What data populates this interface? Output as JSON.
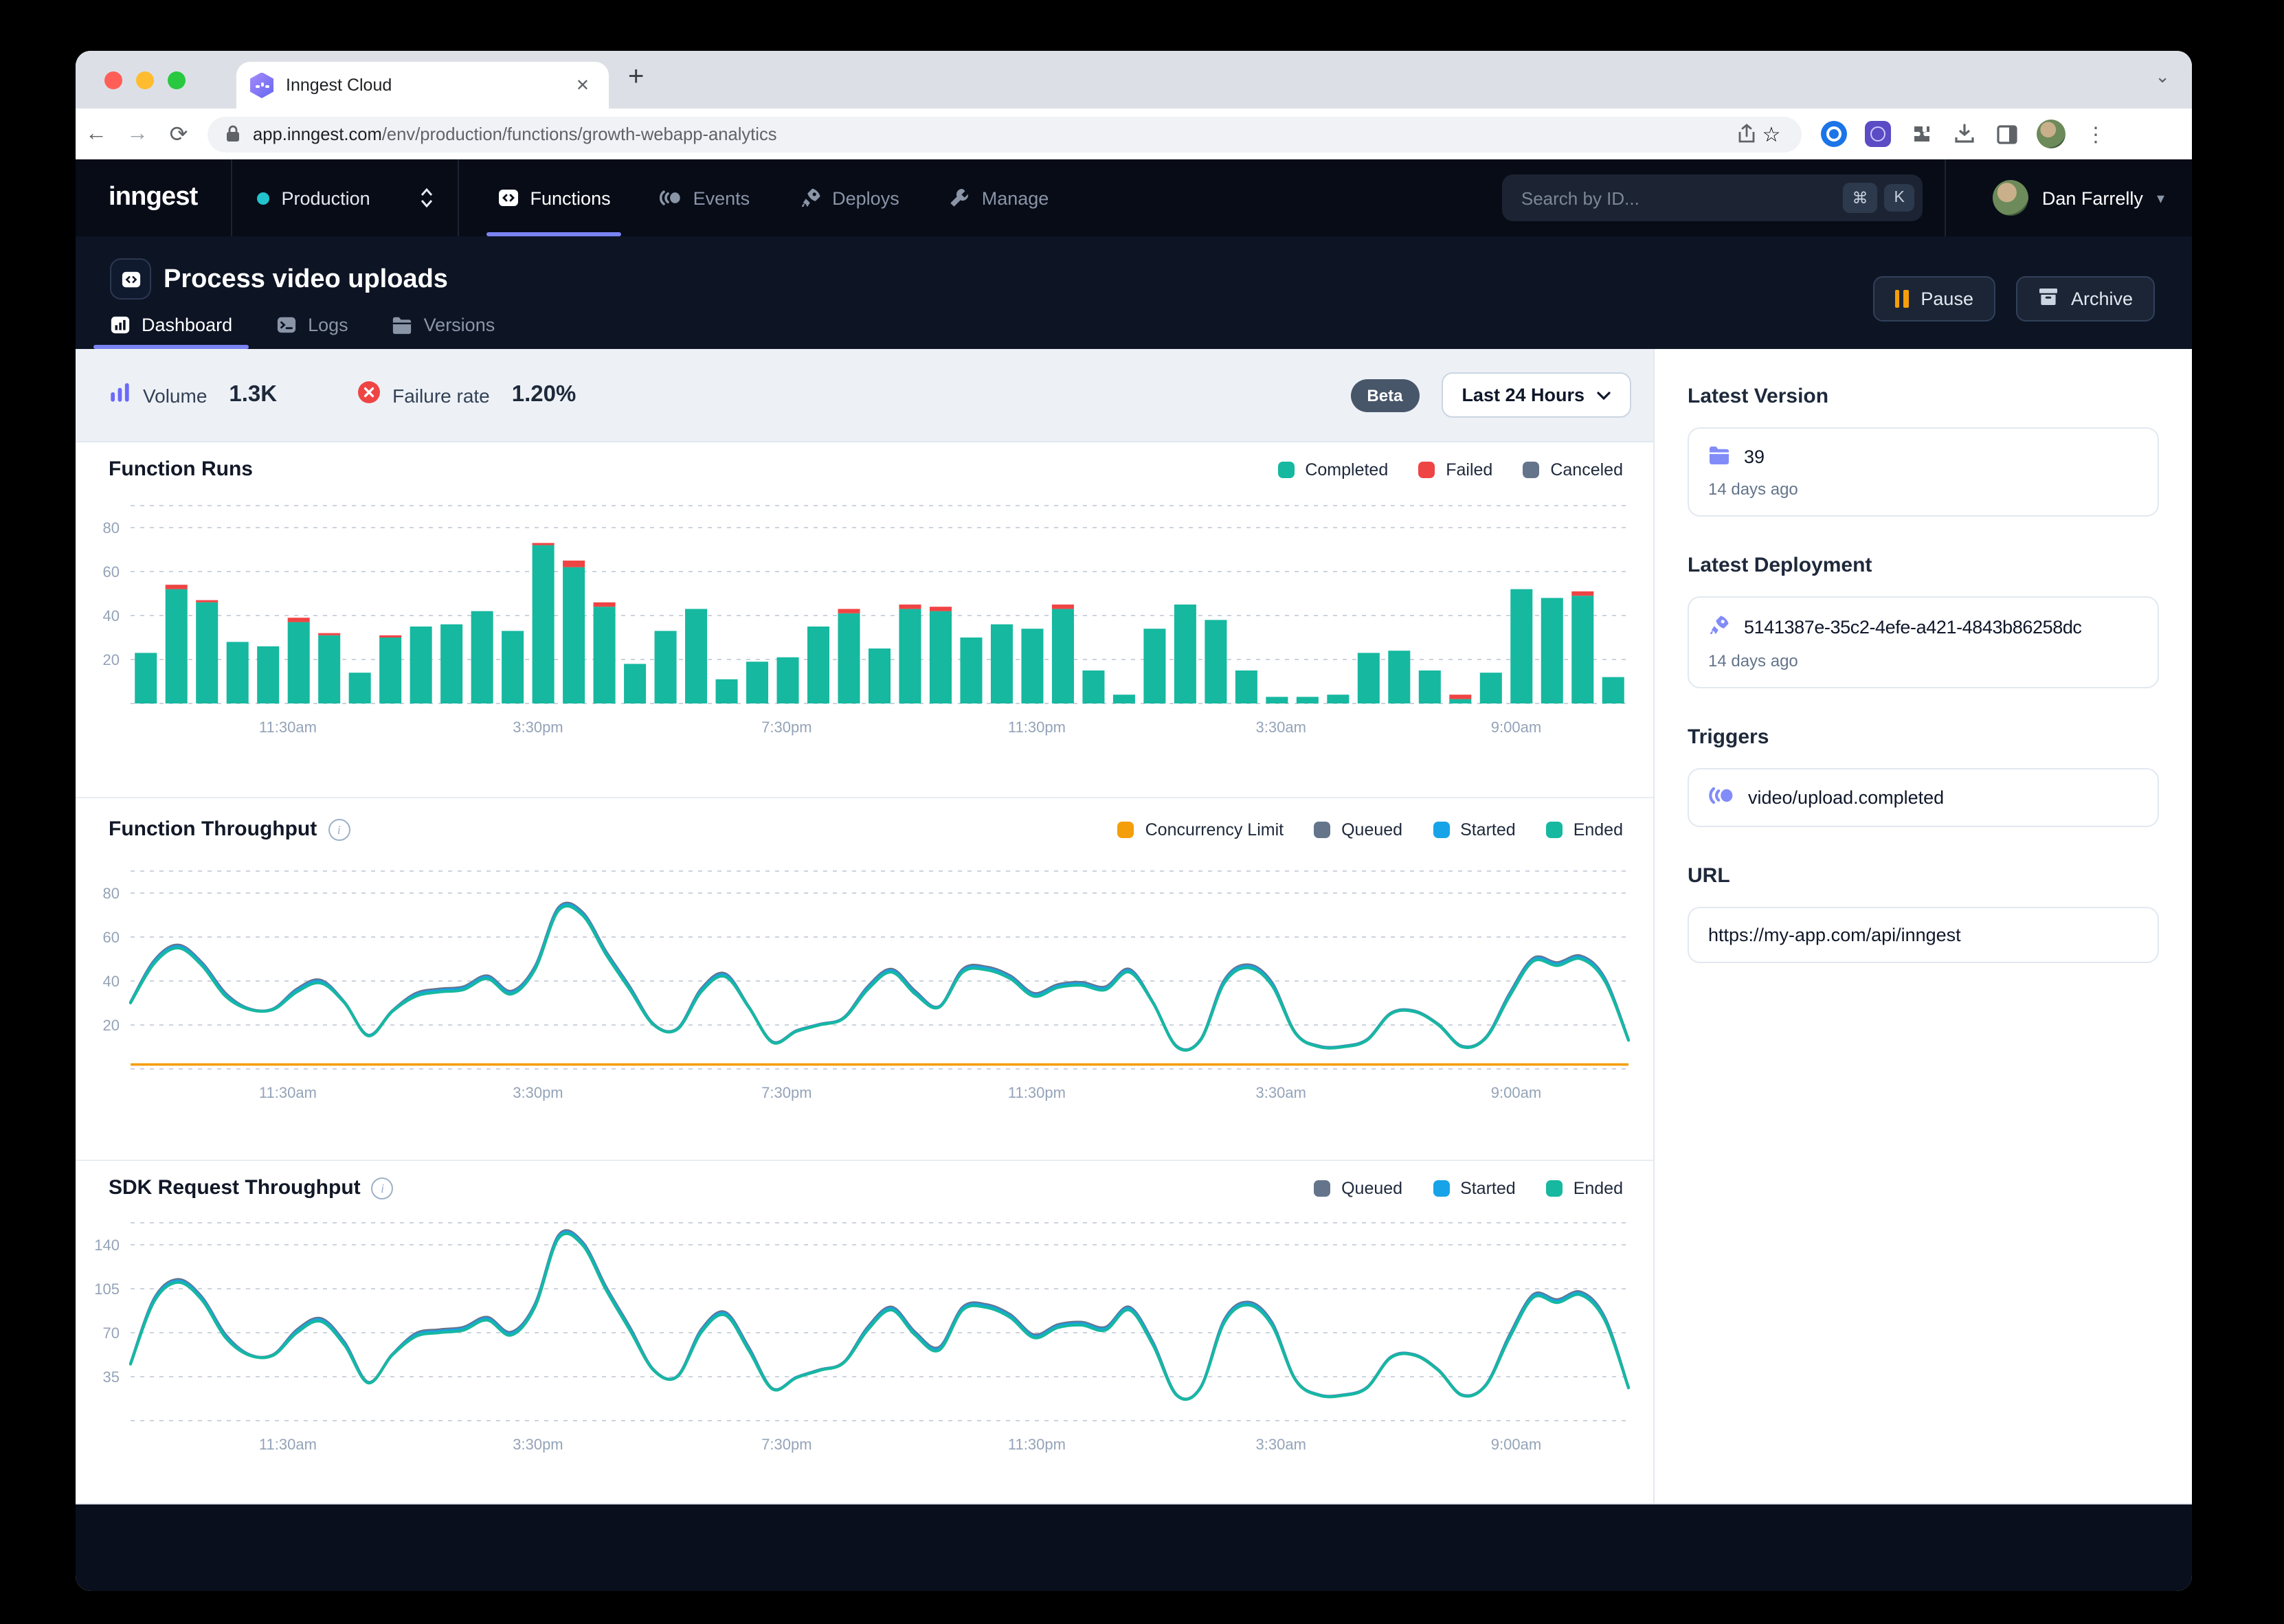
{
  "browser": {
    "tab_title": "Inngest Cloud",
    "url_host": "app.inngest.com",
    "url_path": "/env/production/functions/growth-webapp-analytics"
  },
  "nav": {
    "logo": "inngest",
    "env_label": "Production",
    "items": [
      {
        "label": "Functions",
        "icon": "code-icon",
        "active": true
      },
      {
        "label": "Events",
        "icon": "event-icon",
        "active": false
      },
      {
        "label": "Deploys",
        "icon": "rocket-icon",
        "active": false
      },
      {
        "label": "Manage",
        "icon": "wrench-icon",
        "active": false
      }
    ],
    "search_placeholder": "Search by ID...",
    "search_keys": [
      "⌘",
      "K"
    ],
    "user_name": "Dan Farrelly"
  },
  "header": {
    "title": "Process video uploads",
    "tabs": [
      {
        "label": "Dashboard",
        "icon": "bar-chart-icon",
        "active": true
      },
      {
        "label": "Logs",
        "icon": "terminal-icon",
        "active": false
      },
      {
        "label": "Versions",
        "icon": "folder-icon",
        "active": false
      }
    ],
    "pause_label": "Pause",
    "archive_label": "Archive"
  },
  "stats": {
    "volume_label": "Volume",
    "volume_value": "1.3K",
    "failure_label": "Failure rate",
    "failure_value": "1.20%",
    "beta_label": "Beta",
    "range_label": "Last 24 Hours"
  },
  "sidebar": {
    "latest_version": {
      "heading": "Latest Version",
      "value": "39",
      "time": "14 days ago"
    },
    "latest_deployment": {
      "heading": "Latest Deployment",
      "value": "5141387e-35c2-4efe-a421-4843b86258dc",
      "time": "14 days ago"
    },
    "triggers": {
      "heading": "Triggers",
      "value": "video/upload.completed"
    },
    "url": {
      "heading": "URL",
      "value": "https://my-app.com/api/inngest"
    }
  },
  "colors": {
    "accent_purple": "#7a83f2",
    "teal": "#16b8a0",
    "red": "#ef4444",
    "slate": "#64748b",
    "blue": "#17a3e8",
    "amber": "#f59e0b",
    "nav_bg": "#070c17",
    "header_bg": "#0d1424"
  },
  "chart_data": [
    {
      "type": "bar",
      "title": "Function Runs",
      "legend": [
        {
          "label": "Completed",
          "color": "#16b8a0"
        },
        {
          "label": "Failed",
          "color": "#ef4444"
        },
        {
          "label": "Canceled",
          "color": "#64748b"
        }
      ],
      "x_ticks": [
        "11:30am",
        "3:30pm",
        "7:30pm",
        "11:30pm",
        "3:30am",
        "9:00am"
      ],
      "y_ticks": [
        20,
        40,
        60,
        80
      ],
      "ylim": [
        0,
        90
      ],
      "series": [
        {
          "name": "Completed",
          "color": "#16b8a0",
          "values": [
            23,
            52,
            46,
            28,
            26,
            37,
            31,
            14,
            30,
            35,
            36,
            42,
            33,
            72,
            62,
            44,
            18,
            33,
            43,
            11,
            19,
            21,
            35,
            41,
            25,
            43,
            42,
            30,
            36,
            34,
            43,
            15,
            4,
            34,
            45,
            38,
            15,
            3,
            3,
            4,
            23,
            24,
            15,
            2,
            14,
            52,
            48,
            49,
            12
          ]
        },
        {
          "name": "Failed",
          "color": "#ef4444",
          "values": [
            0,
            2,
            1,
            0,
            0,
            2,
            1,
            0,
            1,
            0,
            0,
            0,
            0,
            1,
            3,
            2,
            0,
            0,
            0,
            0,
            0,
            0,
            0,
            2,
            0,
            2,
            2,
            0,
            0,
            0,
            2,
            0,
            0,
            0,
            0,
            0,
            0,
            0,
            0,
            0,
            0,
            0,
            0,
            2,
            0,
            0,
            0,
            2,
            0
          ]
        },
        {
          "name": "Canceled",
          "color": "#64748b",
          "values": []
        }
      ]
    },
    {
      "type": "line",
      "title": "Function Throughput",
      "legend": [
        {
          "label": "Concurrency Limit",
          "color": "#f59e0b"
        },
        {
          "label": "Queued",
          "color": "#64748b"
        },
        {
          "label": "Started",
          "color": "#17a3e8"
        },
        {
          "label": "Ended",
          "color": "#16b8a0"
        }
      ],
      "x_ticks": [
        "11:30am",
        "3:30pm",
        "7:30pm",
        "11:30pm",
        "3:30am",
        "9:00am"
      ],
      "y_ticks": [
        20,
        40,
        60,
        80
      ],
      "ylim": [
        0,
        90
      ],
      "concurrency_limit": 2,
      "line_series": [
        {
          "name": "Queued",
          "color": "#64748b",
          "offset": 1.4
        },
        {
          "name": "Started",
          "color": "#17a3e8",
          "offset": 0.7
        },
        {
          "name": "Ended",
          "color": "#16b8a0",
          "offset": 0
        }
      ],
      "values": [
        30,
        48,
        55,
        47,
        33,
        27,
        27,
        35,
        39,
        30,
        15,
        26,
        33,
        35,
        36,
        41,
        34,
        45,
        72,
        70,
        52,
        36,
        20,
        18,
        35,
        42,
        28,
        12,
        17,
        20,
        23,
        36,
        44,
        34,
        28,
        44,
        45,
        41,
        33,
        37,
        38,
        36,
        44,
        30,
        10,
        13,
        39,
        46,
        38,
        16,
        10,
        10,
        13,
        25,
        26,
        20,
        10,
        14,
        33,
        49,
        47,
        50,
        40,
        13
      ]
    },
    {
      "type": "line",
      "title": "SDK Request Throughput",
      "legend": [
        {
          "label": "Queued",
          "color": "#64748b"
        },
        {
          "label": "Started",
          "color": "#17a3e8"
        },
        {
          "label": "Ended",
          "color": "#16b8a0"
        }
      ],
      "x_ticks": [
        "11:30am",
        "3:30pm",
        "7:30pm",
        "11:30pm",
        "3:30am",
        "9:00am"
      ],
      "y_ticks": [
        35,
        70,
        105,
        140
      ],
      "ylim": [
        0,
        155
      ],
      "line_series": [
        {
          "name": "Queued",
          "color": "#64748b",
          "offset": 2.4
        },
        {
          "name": "Started",
          "color": "#17a3e8",
          "offset": 1.2
        },
        {
          "name": "Ended",
          "color": "#16b8a0",
          "offset": 0
        }
      ],
      "values": [
        45,
        95,
        110,
        96,
        66,
        52,
        52,
        70,
        79,
        60,
        30,
        52,
        67,
        70,
        72,
        80,
        68,
        90,
        145,
        140,
        104,
        72,
        40,
        35,
        70,
        84,
        56,
        25,
        34,
        40,
        46,
        72,
        88,
        68,
        56,
        88,
        90,
        82,
        66,
        74,
        76,
        72,
        88,
        60,
        20,
        26,
        78,
        92,
        76,
        32,
        20,
        20,
        26,
        50,
        52,
        40,
        20,
        28,
        66,
        98,
        94,
        100,
        80,
        26
      ]
    }
  ]
}
